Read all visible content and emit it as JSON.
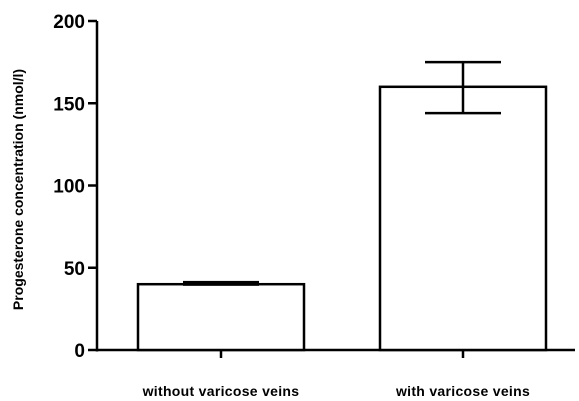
{
  "chart_data": {
    "type": "bar",
    "title": "",
    "xlabel": "",
    "ylabel": "Progesterone concentration (nmol/l)",
    "categories": [
      "without varicose veins",
      "with varicose veins"
    ],
    "values": [
      40,
      160
    ],
    "error": [
      {
        "low": 39,
        "high": 42
      },
      {
        "low": 144,
        "high": 175
      }
    ],
    "ylim": [
      0,
      200
    ],
    "yticks": [
      0,
      50,
      100,
      150,
      200
    ],
    "grid": false,
    "legend": "none",
    "colors": {
      "bar_fill": "#ffffff",
      "bar_stroke": "#000000",
      "axis": "#000000"
    }
  }
}
